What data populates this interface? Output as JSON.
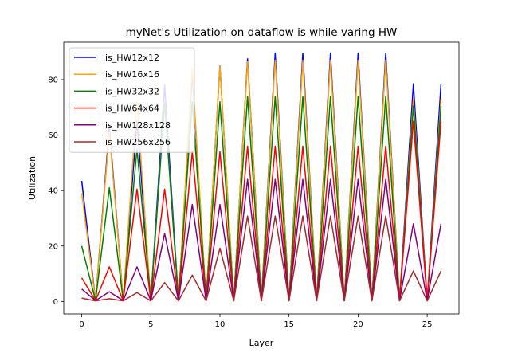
{
  "chart_data": {
    "type": "line",
    "title": "myNet's Utilization on dataflow is while varing HW",
    "xlabel": "Layer",
    "ylabel": "Utilization",
    "xlim": [
      -1.3,
      27.3
    ],
    "ylim": [
      -4.5,
      93.5
    ],
    "xticks": [
      0,
      5,
      10,
      15,
      20,
      25
    ],
    "yticks": [
      0,
      20,
      40,
      60,
      80
    ],
    "grid": false,
    "legend_position": "upper-left",
    "x": [
      0,
      1,
      2,
      3,
      4,
      5,
      6,
      7,
      8,
      9,
      10,
      11,
      12,
      13,
      14,
      15,
      16,
      17,
      18,
      19,
      20,
      21,
      22,
      23,
      24,
      25,
      26
    ],
    "series": [
      {
        "name": "is_HW12x12",
        "color": "#0000ff",
        "values": [
          43.5,
          0.3,
          63,
          0.3,
          65,
          0.3,
          78,
          0.3,
          82,
          0.3,
          85,
          0.3,
          87.5,
          0.3,
          89.5,
          0.3,
          89.5,
          0.3,
          89.5,
          0.3,
          89.5,
          0.3,
          89.5,
          0.3,
          78.5,
          0.3,
          78.5
        ]
      },
      {
        "name": "is_HW16x16",
        "color": "#ffa500",
        "values": [
          39,
          0.3,
          61,
          0.3,
          72,
          0.3,
          72.5,
          0.3,
          84,
          0.3,
          85,
          0.3,
          86.5,
          0.3,
          87,
          0.3,
          87,
          0.3,
          87,
          0.3,
          87,
          0.3,
          87,
          0.3,
          73,
          0.3,
          73
        ]
      },
      {
        "name": "is_HW32x32",
        "color": "#008000",
        "values": [
          20,
          0.3,
          41,
          0.3,
          55,
          0.3,
          71.5,
          0.3,
          72,
          0.3,
          72,
          0.3,
          74,
          0.3,
          74,
          0.3,
          74,
          0.3,
          74,
          0.3,
          74,
          0.3,
          74,
          0.3,
          70.5,
          0.3,
          70.5
        ]
      },
      {
        "name": "is_HW64x64",
        "color": "#ff0000",
        "values": [
          8.5,
          0.3,
          12.5,
          0.3,
          40.5,
          0.3,
          40.5,
          0.3,
          54,
          0.3,
          54,
          0.3,
          56,
          0.3,
          56,
          0.3,
          56,
          0.3,
          56,
          0.3,
          56,
          0.3,
          56,
          0.3,
          65,
          0.3,
          65
        ]
      },
      {
        "name": "is_HW128x128",
        "color": "#800080",
        "values": [
          4.5,
          0.3,
          3.5,
          0.3,
          12.5,
          0.3,
          24.5,
          0.3,
          35,
          0.3,
          35,
          0.3,
          44,
          0.3,
          44,
          0.3,
          44,
          0.3,
          44,
          0.3,
          44,
          0.3,
          44,
          0.3,
          28,
          0.3,
          28
        ]
      },
      {
        "name": "is_HW256x256",
        "color": "#a52a2a",
        "values": [
          1.2,
          0.2,
          1.0,
          0.2,
          3.2,
          0.2,
          6.8,
          0.2,
          9.5,
          0.2,
          19.2,
          0.2,
          30.8,
          0.2,
          30.8,
          0.2,
          30.8,
          0.2,
          30.8,
          0.2,
          30.8,
          0.2,
          30.8,
          0.2,
          11,
          0.2,
          11
        ]
      }
    ]
  }
}
